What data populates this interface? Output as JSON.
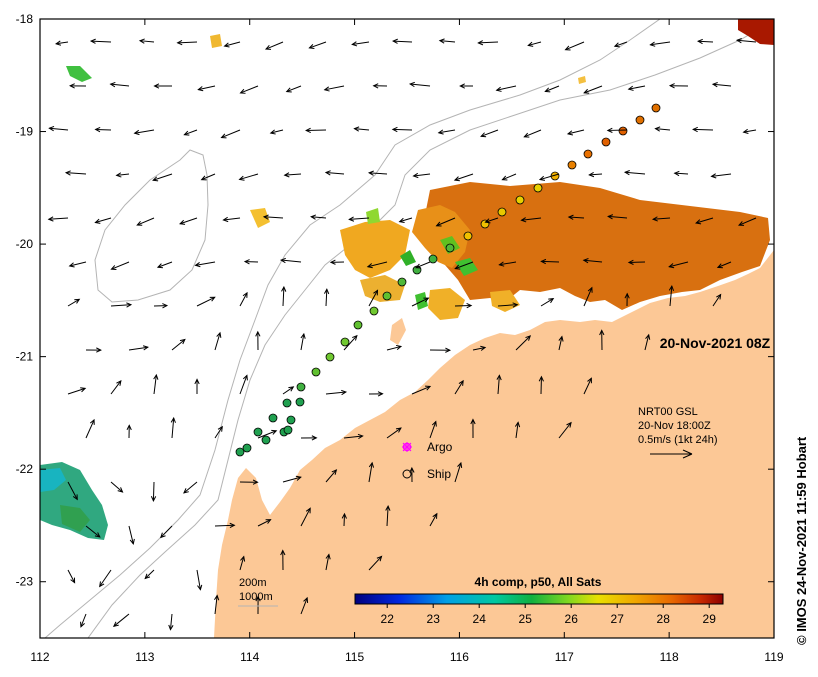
{
  "map": {
    "timestamp": "20-Nov-2021 08Z",
    "lon_ticks": [
      "112",
      "113",
      "114",
      "115",
      "116",
      "117",
      "118",
      "119"
    ],
    "lat_ticks": [
      "-18",
      "-19",
      "-20",
      "-21",
      "-22",
      "-23"
    ],
    "lon_range": [
      112,
      119
    ],
    "lat_range": [
      -23.5,
      -18
    ],
    "land_color": "#fcc896",
    "isobath_color": "#b4b4b4"
  },
  "current_legend": {
    "line1": "NRT00 GSL",
    "line2": "20-Nov 18:00Z",
    "line3": "0.5m/s (1kt 24h)"
  },
  "markers_legend": {
    "argo_label": "Argo",
    "ship_label": "Ship",
    "argo_color": "#ff00ff"
  },
  "depth_legend": {
    "label_200": "200m",
    "label_1000": "1000m"
  },
  "colorbar": {
    "title": "4h comp, p50, All Sats",
    "ticks": [
      "22",
      "23",
      "24",
      "25",
      "26",
      "27",
      "28",
      "29"
    ],
    "range": [
      21.3,
      29.3
    ]
  },
  "credit": "© IMOS 24-Nov-2021 11:59 Hobart"
}
